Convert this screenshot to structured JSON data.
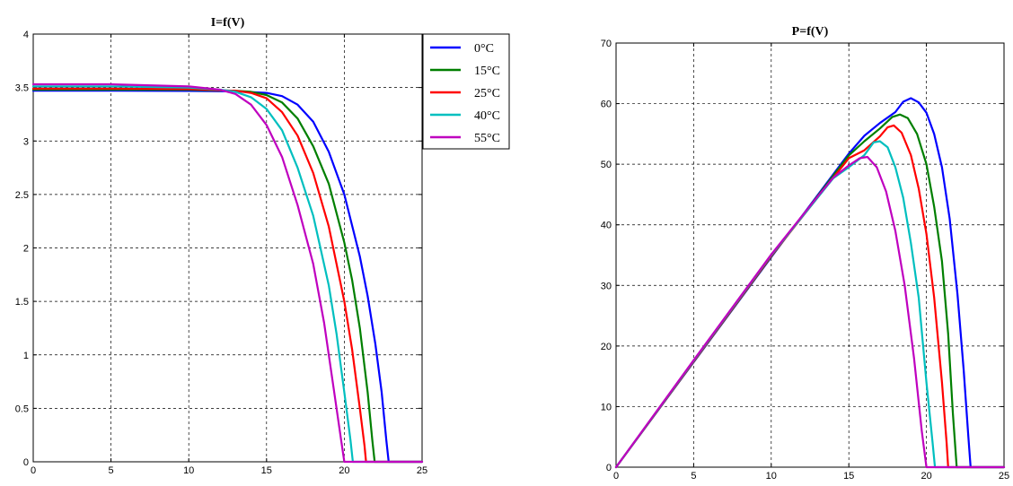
{
  "chart_data": [
    {
      "type": "line",
      "title": "I=f(V)",
      "xlabel": "",
      "ylabel": "",
      "xlim": [
        0,
        25
      ],
      "ylim": [
        0,
        4
      ],
      "xticks": [
        0,
        5,
        10,
        15,
        20,
        25
      ],
      "xtick_labels": [
        "0",
        "5",
        "10",
        "15",
        "20",
        "25"
      ],
      "yticks": [
        0,
        0.5,
        1,
        1.5,
        2,
        2.5,
        3,
        3.5,
        4
      ],
      "ytick_labels": [
        "0",
        "0.5",
        "1",
        "1.5",
        "2",
        "2.5",
        "3",
        "3.5",
        "4"
      ],
      "grid": true,
      "legend": "top-right",
      "series": [
        {
          "name": "0°C",
          "color": "#0000ff",
          "points": [
            [
              0,
              3.47
            ],
            [
              5,
              3.47
            ],
            [
              10,
              3.468
            ],
            [
              13,
              3.465
            ],
            [
              15,
              3.45
            ],
            [
              16,
              3.42
            ],
            [
              17,
              3.34
            ],
            [
              18,
              3.18
            ],
            [
              19,
              2.9
            ],
            [
              20,
              2.5
            ],
            [
              21,
              1.92
            ],
            [
              21.5,
              1.55
            ],
            [
              22,
              1.1
            ],
            [
              22.4,
              0.65
            ],
            [
              22.7,
              0.2
            ],
            [
              22.85,
              0
            ]
          ]
        },
        {
          "name": "15°C",
          "color": "#007f00",
          "points": [
            [
              0,
              3.48
            ],
            [
              5,
              3.48
            ],
            [
              10,
              3.478
            ],
            [
              13,
              3.47
            ],
            [
              14,
              3.46
            ],
            [
              15,
              3.43
            ],
            [
              16,
              3.36
            ],
            [
              17,
              3.21
            ],
            [
              18,
              2.95
            ],
            [
              19,
              2.6
            ],
            [
              20,
              2.05
            ],
            [
              20.5,
              1.7
            ],
            [
              21,
              1.25
            ],
            [
              21.5,
              0.65
            ],
            [
              21.8,
              0.2
            ],
            [
              21.95,
              0
            ]
          ]
        },
        {
          "name": "25°C",
          "color": "#ff0000",
          "points": [
            [
              0,
              3.49
            ],
            [
              5,
              3.49
            ],
            [
              10,
              3.485
            ],
            [
              13,
              3.47
            ],
            [
              14,
              3.45
            ],
            [
              15,
              3.4
            ],
            [
              16,
              3.27
            ],
            [
              17,
              3.05
            ],
            [
              18,
              2.7
            ],
            [
              19,
              2.2
            ],
            [
              20,
              1.5
            ],
            [
              20.5,
              1.05
            ],
            [
              21,
              0.5
            ],
            [
              21.3,
              0.15
            ],
            [
              21.4,
              0
            ]
          ]
        },
        {
          "name": "40°C",
          "color": "#00bfbf",
          "points": [
            [
              0,
              3.51
            ],
            [
              5,
              3.51
            ],
            [
              10,
              3.5
            ],
            [
              12,
              3.48
            ],
            [
              13,
              3.46
            ],
            [
              14,
              3.41
            ],
            [
              15,
              3.3
            ],
            [
              16,
              3.1
            ],
            [
              17,
              2.75
            ],
            [
              18,
              2.3
            ],
            [
              19,
              1.65
            ],
            [
              19.5,
              1.2
            ],
            [
              20,
              0.65
            ],
            [
              20.4,
              0.2
            ],
            [
              20.55,
              0
            ]
          ]
        },
        {
          "name": "55°C",
          "color": "#bf00bf",
          "points": [
            [
              0,
              3.53
            ],
            [
              5,
              3.53
            ],
            [
              10,
              3.51
            ],
            [
              12,
              3.48
            ],
            [
              13,
              3.44
            ],
            [
              14,
              3.34
            ],
            [
              15,
              3.15
            ],
            [
              16,
              2.85
            ],
            [
              17,
              2.4
            ],
            [
              18,
              1.85
            ],
            [
              18.7,
              1.3
            ],
            [
              19.3,
              0.7
            ],
            [
              19.8,
              0.2
            ],
            [
              20,
              0
            ]
          ]
        }
      ],
      "baseline_x_end": 25
    },
    {
      "type": "line",
      "title": "P=f(V)",
      "xlabel": "",
      "ylabel": "",
      "xlim": [
        0,
        25
      ],
      "ylim": [
        0,
        70
      ],
      "xticks": [
        0,
        5,
        10,
        15,
        20,
        25
      ],
      "xtick_labels": [
        "0",
        "5",
        "10",
        "15",
        "20",
        "25"
      ],
      "yticks": [
        0,
        10,
        20,
        30,
        40,
        50,
        60,
        70
      ],
      "ytick_labels": [
        "0",
        "10",
        "20",
        "30",
        "40",
        "50",
        "60",
        "70"
      ],
      "grid": true,
      "series": [
        {
          "name": "0°C",
          "color": "#0000ff",
          "points": [
            [
              0,
              0
            ],
            [
              5,
              17.35
            ],
            [
              10,
              34.68
            ],
            [
              15,
              51.75
            ],
            [
              16,
              54.7
            ],
            [
              17,
              56.8
            ],
            [
              18,
              58.6
            ],
            [
              18.5,
              60.3
            ],
            [
              19,
              60.9
            ],
            [
              19.5,
              60.2
            ],
            [
              20,
              58.5
            ],
            [
              20.5,
              55
            ],
            [
              21,
              49.5
            ],
            [
              21.5,
              41
            ],
            [
              22,
              28.5
            ],
            [
              22.4,
              16
            ],
            [
              22.7,
              5
            ],
            [
              22.85,
              0
            ]
          ]
        },
        {
          "name": "15°C",
          "color": "#007f00",
          "points": [
            [
              0,
              0
            ],
            [
              5,
              17.4
            ],
            [
              10,
              34.78
            ],
            [
              15,
              51.45
            ],
            [
              16,
              53.8
            ],
            [
              17,
              55.9
            ],
            [
              17.8,
              57.8
            ],
            [
              18.3,
              58.2
            ],
            [
              18.8,
              57.6
            ],
            [
              19.4,
              55
            ],
            [
              20,
              50
            ],
            [
              20.5,
              43
            ],
            [
              21,
              34
            ],
            [
              21.4,
              22
            ],
            [
              21.7,
              9
            ],
            [
              21.95,
              0
            ]
          ]
        },
        {
          "name": "25°C",
          "color": "#ff0000",
          "points": [
            [
              0,
              0
            ],
            [
              5,
              17.45
            ],
            [
              10,
              34.85
            ],
            [
              15,
              51
            ],
            [
              16,
              52.3
            ],
            [
              17,
              54.6
            ],
            [
              17.5,
              56.1
            ],
            [
              17.9,
              56.4
            ],
            [
              18.4,
              55.2
            ],
            [
              19,
              51.5
            ],
            [
              19.5,
              46
            ],
            [
              20,
              38.5
            ],
            [
              20.5,
              28
            ],
            [
              21,
              14
            ],
            [
              21.3,
              4
            ],
            [
              21.4,
              0
            ]
          ]
        },
        {
          "name": "40°C",
          "color": "#00bfbf",
          "points": [
            [
              0,
              0
            ],
            [
              5,
              17.55
            ],
            [
              10,
              35
            ],
            [
              14,
              47.7
            ],
            [
              15,
              49.5
            ],
            [
              16,
              51.5
            ],
            [
              16.6,
              53.6
            ],
            [
              17,
              53.8
            ],
            [
              17.5,
              52.8
            ],
            [
              18,
              49.5
            ],
            [
              18.5,
              44.5
            ],
            [
              19,
              37
            ],
            [
              19.5,
              28
            ],
            [
              20,
              14
            ],
            [
              20.4,
              4
            ],
            [
              20.55,
              0
            ]
          ]
        },
        {
          "name": "55°C",
          "color": "#bf00bf",
          "points": [
            [
              0,
              0
            ],
            [
              5,
              17.65
            ],
            [
              10,
              35.1
            ],
            [
              13,
              44.7
            ],
            [
              14,
              47.8
            ],
            [
              15,
              49.8
            ],
            [
              15.7,
              51
            ],
            [
              16.2,
              51.2
            ],
            [
              16.8,
              49.5
            ],
            [
              17.4,
              45.5
            ],
            [
              18,
              39
            ],
            [
              18.6,
              30
            ],
            [
              19.2,
              18
            ],
            [
              19.7,
              6
            ],
            [
              20,
              0
            ]
          ]
        }
      ],
      "baseline_x_end": 25
    }
  ]
}
